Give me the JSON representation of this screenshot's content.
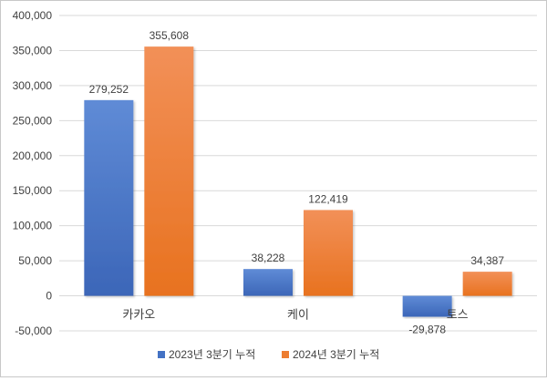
{
  "chart_data": {
    "type": "bar",
    "categories": [
      "카카오",
      "케이",
      "토스"
    ],
    "series": [
      {
        "name": "2023년 3분기 누적",
        "values": [
          279252,
          38228,
          -29878
        ],
        "labels": [
          "279,252",
          "38,228",
          "-29,878"
        ]
      },
      {
        "name": "2024년 3분기 누적",
        "values": [
          355608,
          122419,
          34387
        ],
        "labels": [
          "355,608",
          "122,419",
          "34,387"
        ]
      }
    ],
    "ylim": [
      -50000,
      400000
    ],
    "yticks": [
      -50000,
      0,
      50000,
      100000,
      150000,
      200000,
      250000,
      300000,
      350000,
      400000
    ],
    "ytick_labels": [
      "-50,000",
      "0",
      "50,000",
      "100,000",
      "150,000",
      "200,000",
      "250,000",
      "300,000",
      "350,000",
      "400,000"
    ],
    "grid": true,
    "legend_position": "bottom",
    "colors": [
      "#4472c4",
      "#ed7d31"
    ]
  }
}
